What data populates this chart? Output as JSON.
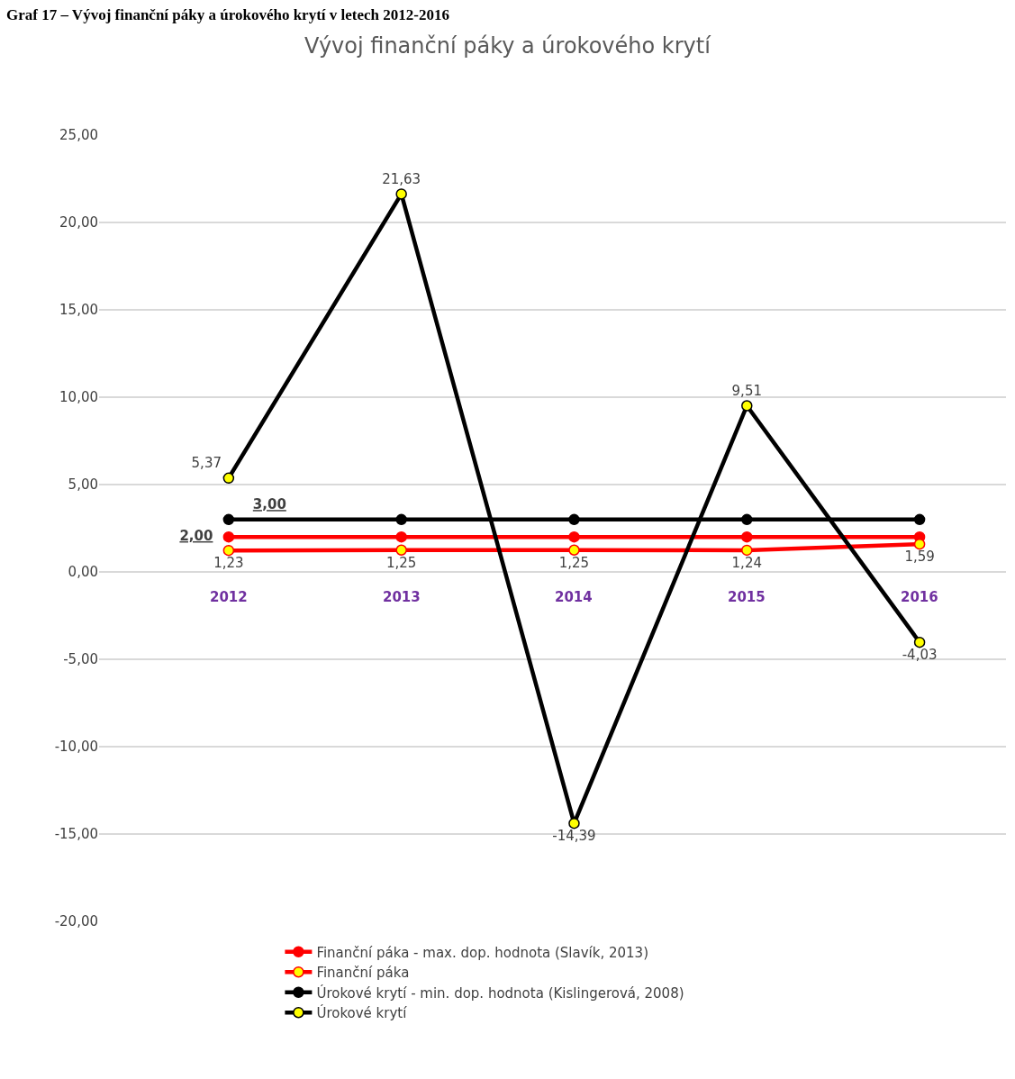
{
  "chart_data": {
    "type": "line",
    "title": "Vývoj finanční páky a úrokového krytí",
    "annotations": [
      "Graf 17 – Vývoj finanční páky a úrokového krytí v letech 2012-2016"
    ],
    "categories": [
      "2012",
      "2013",
      "2014",
      "2015",
      "2016"
    ],
    "series": [
      {
        "name": "Finanční páka - max. dop. hodnota (Slavík, 2013)",
        "color": "#ff0000",
        "values": [
          2,
          2,
          2,
          2,
          2
        ],
        "value_labels": [
          "2,00",
          null,
          null,
          null,
          null
        ]
      },
      {
        "name": "Finanční páka",
        "color": "#ff0000",
        "values": [
          1.23,
          1.25,
          1.25,
          1.24,
          1.59
        ],
        "value_labels": [
          "1,23",
          "1,25",
          "1,25",
          "1,24",
          "1,59"
        ]
      },
      {
        "name": "Úrokové krytí - min. dop. hodnota (Kislingerová, 2008)",
        "color": "#000000",
        "values": [
          3,
          3,
          3,
          3,
          3
        ],
        "value_labels": [
          "3,00",
          null,
          null,
          null,
          null
        ]
      },
      {
        "name": "Úrokové krytí",
        "color": "#000000",
        "values": [
          5.37,
          21.63,
          -14.39,
          9.51,
          -4.03
        ],
        "value_labels": [
          "5,37",
          "21,63",
          "-14,39",
          "9,51",
          "-4,03"
        ]
      }
    ],
    "ylim": [
      -20,
      25
    ],
    "yticks": [
      {
        "value": -20,
        "label": "-20,00"
      },
      {
        "value": -15,
        "label": "-15,00"
      },
      {
        "value": -10,
        "label": "-10,00"
      },
      {
        "value": -5,
        "label": "-5,00"
      },
      {
        "value": 0,
        "label": "0,00"
      },
      {
        "value": 5,
        "label": "5,00"
      },
      {
        "value": 10,
        "label": "10,00"
      },
      {
        "value": 15,
        "label": "15,00"
      },
      {
        "value": 20,
        "label": "20,00"
      },
      {
        "value": 25,
        "label": "25,00"
      }
    ],
    "grid": "y",
    "legend": "bottom",
    "marker": "circle",
    "line_style": "solid"
  }
}
